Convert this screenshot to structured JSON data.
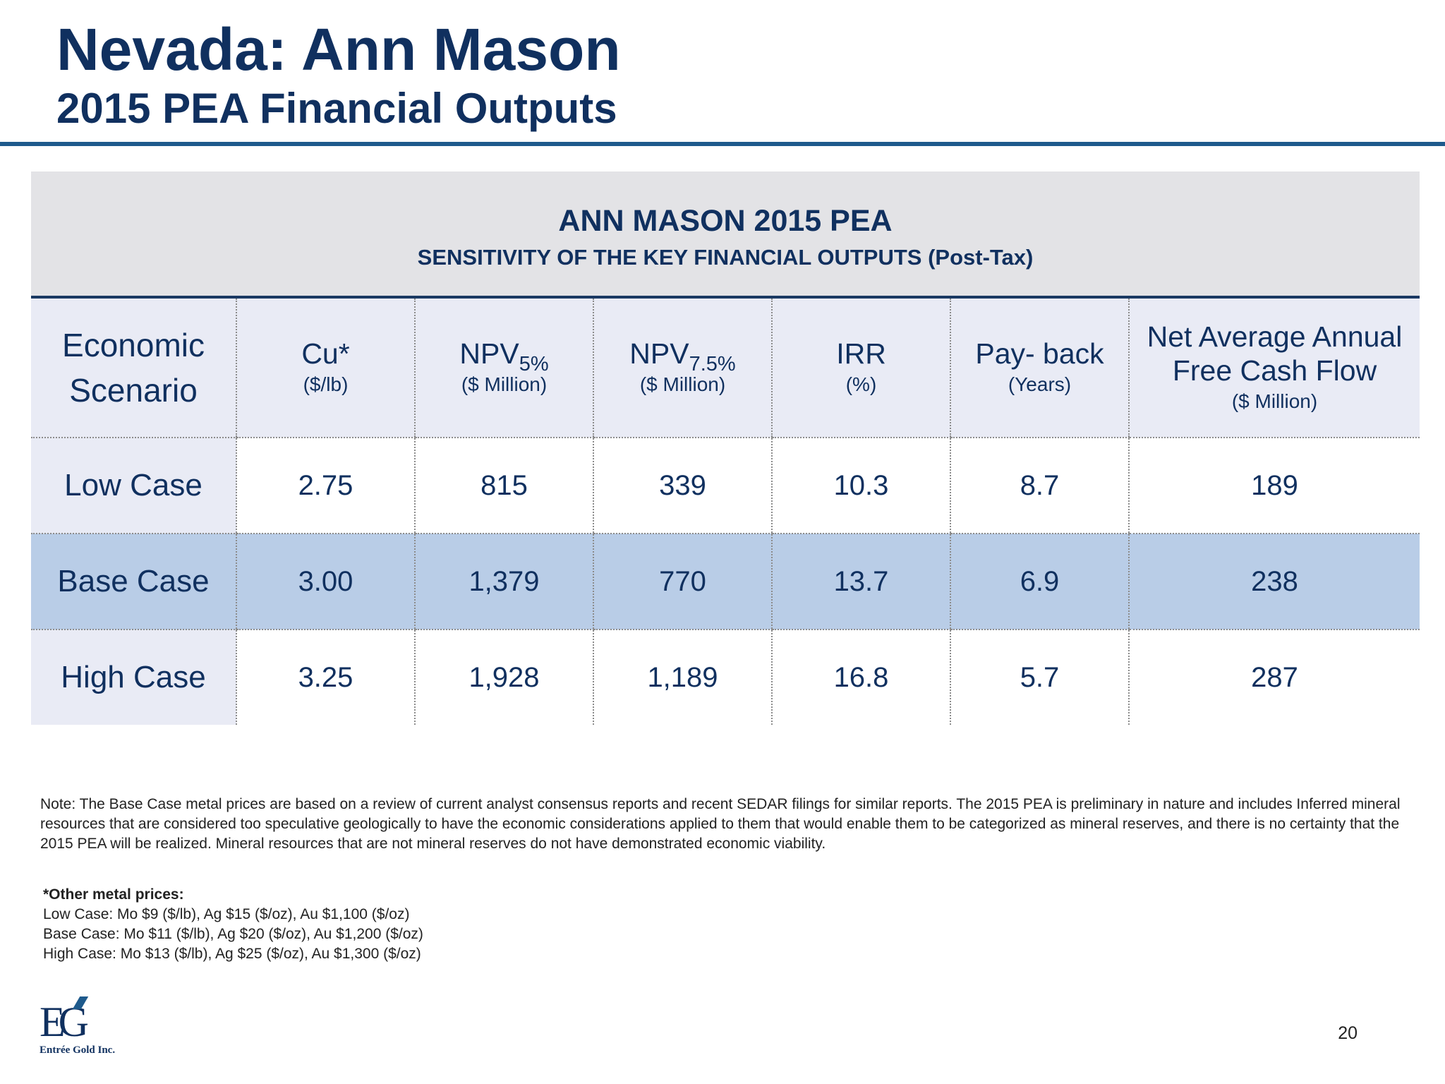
{
  "slide": {
    "title": "Nevada: Ann Mason",
    "subtitle": "2015 PEA Financial Outputs",
    "page_number": "20"
  },
  "table": {
    "title": "ANN MASON 2015 PEA",
    "subtitle": "SENSITIVITY OF THE KEY FINANCIAL OUTPUTS (Post-Tax)",
    "columns": [
      {
        "label_line1": "Economic",
        "label_line2": "Scenario"
      },
      {
        "label": "Cu*",
        "unit": "($/lb)"
      },
      {
        "label": "NPV",
        "subscript": "5%",
        "unit": "($ Million)"
      },
      {
        "label": "NPV",
        "subscript": "7.5%",
        "unit": "($ Million)"
      },
      {
        "label": "IRR",
        "unit": "(%)"
      },
      {
        "label": "Pay- back",
        "unit": "(Years)"
      },
      {
        "label_line1": "Net Average Annual",
        "label_line2": "Free Cash Flow",
        "unit": "($ Million)"
      }
    ],
    "rows": [
      {
        "scenario": "Low Case",
        "cu": "2.75",
        "npv5": "815",
        "npv75": "339",
        "irr": "10.3",
        "payback": "8.7",
        "fcf": "189"
      },
      {
        "scenario": "Base Case",
        "cu": "3.00",
        "npv5": "1,379",
        "npv75": "770",
        "irr": "13.7",
        "payback": "6.9",
        "fcf": "238"
      },
      {
        "scenario": "High Case",
        "cu": "3.25",
        "npv5": "1,928",
        "npv75": "1,189",
        "irr": "16.8",
        "payback": "5.7",
        "fcf": "287"
      }
    ],
    "highlight_color": "#b9cde7"
  },
  "note": "Note: The Base Case metal prices are based on a review of current analyst consensus reports and recent SEDAR filings for similar reports. The 2015 PEA is preliminary in nature and includes Inferred mineral resources that are considered too speculative geologically to have the economic considerations applied to them that would enable them to be categorized as mineral reserves, and there is no certainty that the 2015 PEA will be realized. Mineral resources that are not mineral reserves do not have demonstrated economic viability.",
  "metal_prices": {
    "title": "*Other metal prices:",
    "low": "Low Case: Mo $9 ($/lb), Ag $15 ($/oz), Au $1,100 ($/oz)",
    "base": "Base Case: Mo $11 ($/lb), Ag $20 ($/oz), Au $1,200 ($/oz)",
    "high": "High Case: Mo $13 ($/lb), Ag $25 ($/oz), Au $1,300  ($/oz)"
  },
  "logo": {
    "letters": "EG",
    "company": "Entrée Gold Inc."
  },
  "colors": {
    "navy": "#10305f",
    "rule": "#1e5a8c",
    "header_bg": "#e3e3e6",
    "label_bg": "#e9ebf5"
  }
}
